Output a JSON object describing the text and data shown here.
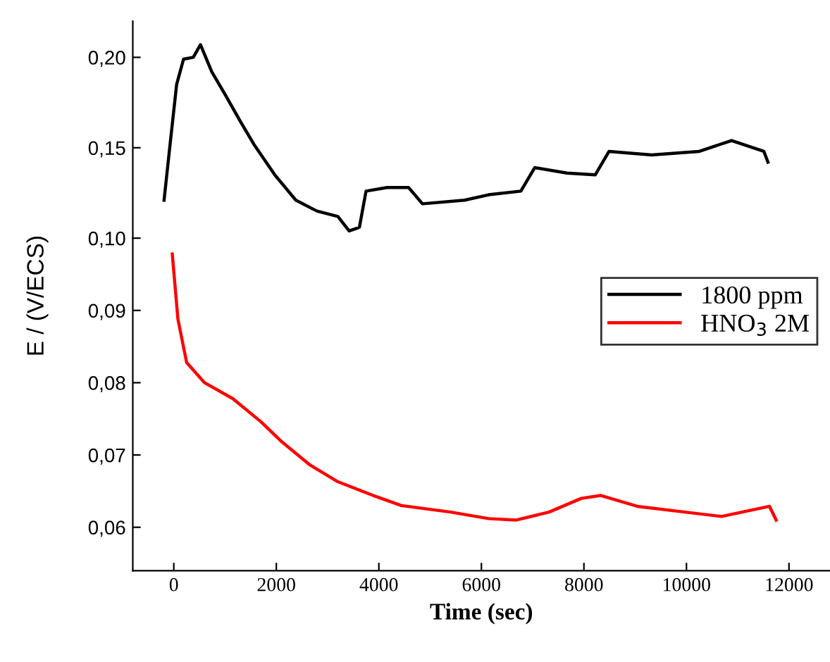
{
  "chart_data": [
    {
      "type": "line",
      "tick_labels": "y",
      "xlim": [
        -800,
        12800
      ],
      "ylim": [
        0.1,
        0.22
      ],
      "yticks": [
        {
          "value": 0.15,
          "label": "0,15"
        },
        {
          "value": 0.2,
          "label": "0,20"
        }
      ],
      "series": [
        {
          "name": "1800 ppm",
          "color": "#000000",
          "x": [
            -190,
            -80,
            55,
            190,
            380,
            520,
            740,
            1010,
            1290,
            1560,
            1970,
            2380,
            2790,
            3200,
            3420,
            3620,
            3750,
            4160,
            4580,
            4850,
            5670,
            6140,
            6770,
            7040,
            7670,
            8220,
            8490,
            9320,
            10250,
            10880,
            11510,
            11590
          ],
          "values": [
            0.121,
            0.15,
            0.185,
            0.199,
            0.2,
            0.207,
            0.192,
            0.179,
            0.165,
            0.152,
            0.135,
            0.121,
            0.115,
            0.112,
            0.104,
            0.106,
            0.126,
            0.128,
            0.128,
            0.119,
            0.121,
            0.124,
            0.126,
            0.139,
            0.136,
            0.135,
            0.148,
            0.146,
            0.148,
            0.154,
            0.148,
            0.142
          ]
        }
      ]
    },
    {
      "type": "line",
      "xlabel": "Time (sec)",
      "ylabel": "E / (V/ECS)",
      "legend": "right",
      "xlim": [
        -800,
        12800
      ],
      "xticks": [
        0,
        2000,
        4000,
        6000,
        8000,
        10000,
        12000
      ],
      "ylim": [
        0.054,
        0.1
      ],
      "yticks": [
        {
          "value": 0.06,
          "label": "0,06"
        },
        {
          "value": 0.07,
          "label": "0,07"
        },
        {
          "value": 0.08,
          "label": "0,08"
        },
        {
          "value": 0.09,
          "label": "0,09"
        },
        {
          "value": 0.1,
          "label": "0,10"
        }
      ],
      "series": [
        {
          "name": "HNO$_{3}$ 2M",
          "color": "#ff0000",
          "x": [
            -30,
            80,
            250,
            600,
            1150,
            1700,
            2110,
            2660,
            3200,
            3890,
            4440,
            5400,
            6140,
            6680,
            7320,
            7950,
            8330,
            9040,
            9970,
            10680,
            11620,
            11750
          ],
          "values": [
            0.0978,
            0.0888,
            0.0828,
            0.08,
            0.0778,
            0.0746,
            0.0718,
            0.0686,
            0.0663,
            0.0644,
            0.063,
            0.0621,
            0.0612,
            0.061,
            0.0621,
            0.064,
            0.0644,
            0.0629,
            0.0621,
            0.0615,
            0.0629,
            0.061
          ]
        }
      ]
    }
  ]
}
